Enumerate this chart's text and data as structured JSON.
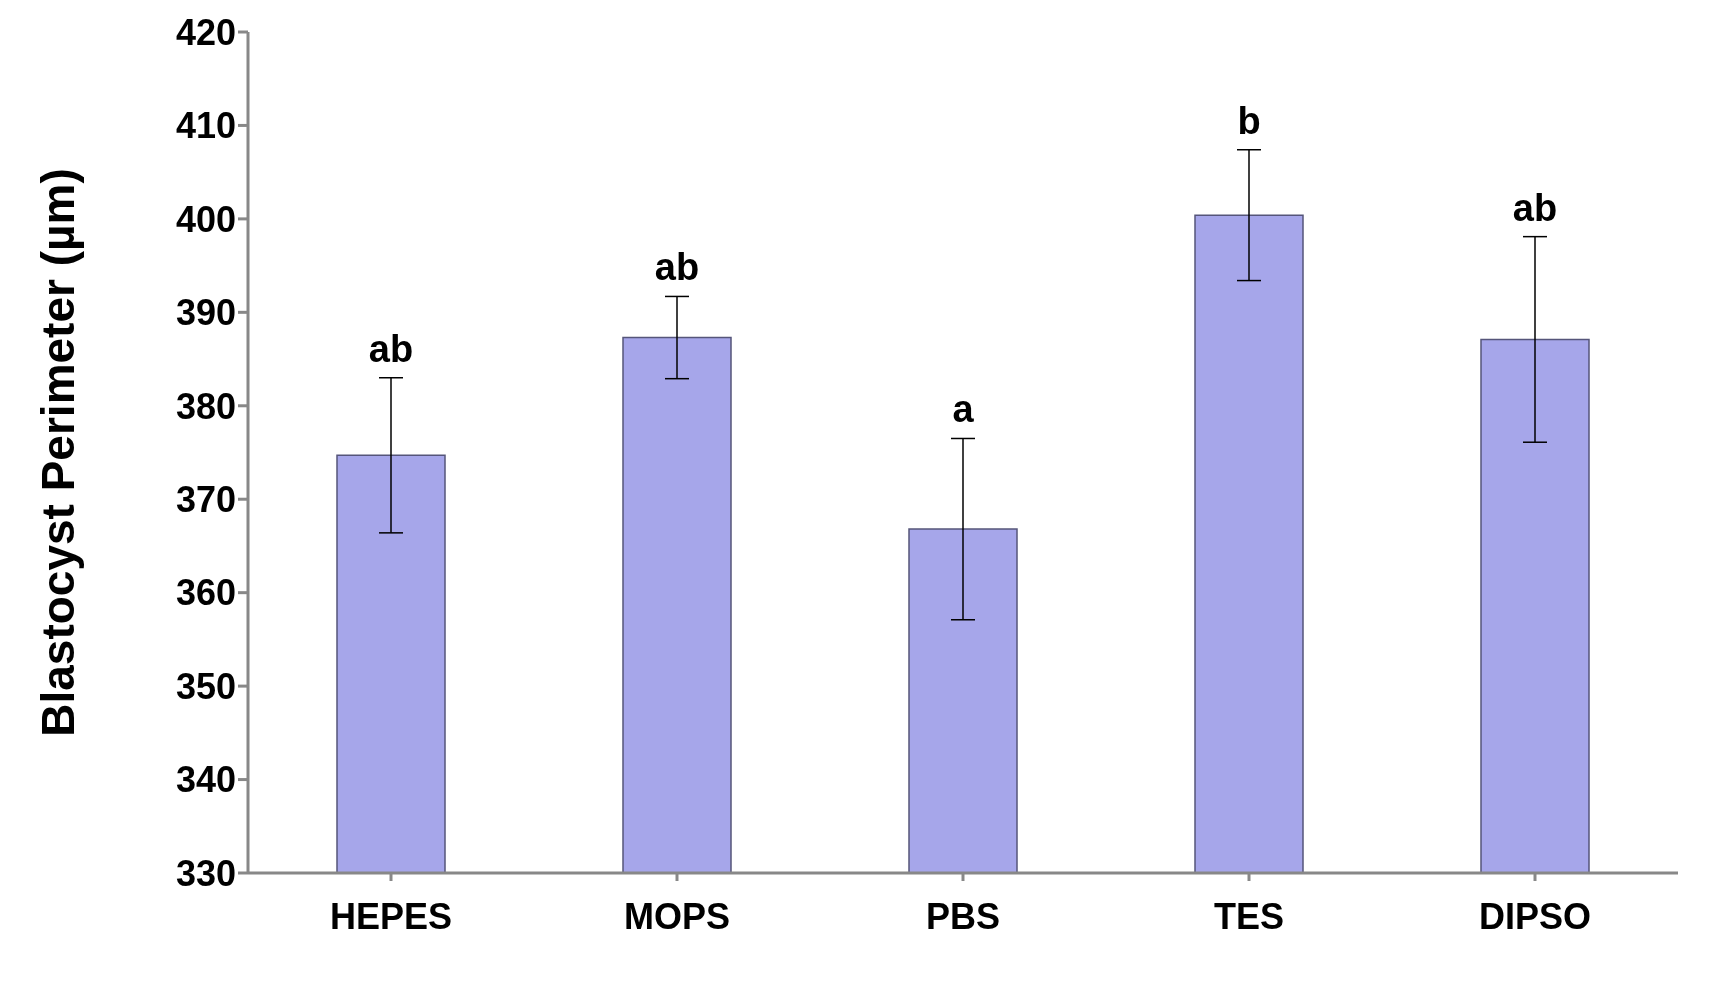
{
  "chart_data": {
    "type": "bar",
    "ylabel": "Blastocyst Perimeter (µm)",
    "categories": [
      "HEPES",
      "MOPS",
      "PBS",
      "TES",
      "DIPSO"
    ],
    "values": [
      374.7,
      387.3,
      366.8,
      400.4,
      387.1
    ],
    "errors": [
      8.3,
      4.4,
      9.7,
      7,
      11
    ],
    "color": "#a6a6ea",
    "ylim": [
      330,
      420
    ],
    "yticks": [
      330,
      340,
      350,
      360,
      370,
      380,
      390,
      400,
      410,
      420
    ],
    "grid": false,
    "annotations": [
      {
        "text": "ab",
        "x": "HEPES",
        "y": 383
      },
      {
        "text": "ab",
        "x": "MOPS",
        "y": 391.7
      },
      {
        "text": "a",
        "x": "PBS",
        "y": 376.5
      },
      {
        "text": "b",
        "x": "TES",
        "y": 407.4
      },
      {
        "text": "ab",
        "x": "DIPSO",
        "y": 398.1
      }
    ]
  }
}
